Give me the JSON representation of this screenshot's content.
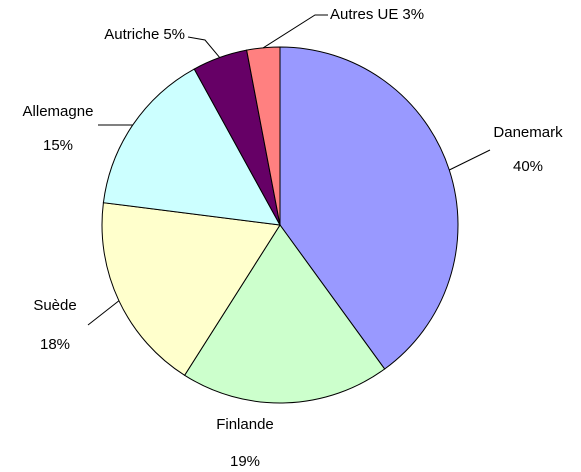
{
  "chart_data": {
    "type": "pie",
    "categories": [
      "Danemark",
      "Finlande",
      "Suède",
      "Allemagne",
      "Autriche",
      "Autres UE"
    ],
    "values": [
      40,
      19,
      18,
      15,
      5,
      3
    ],
    "value_labels": [
      "40%",
      "19%",
      "18%",
      "15%",
      "5%",
      "3%"
    ],
    "colors": [
      "#9999ff",
      "#ccffcc",
      "#ffffcc",
      "#ccffff",
      "#660066",
      "#ff8080"
    ]
  }
}
